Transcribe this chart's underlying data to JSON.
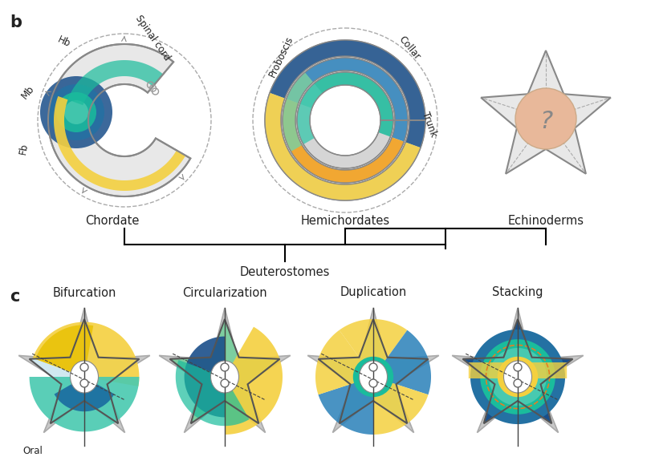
{
  "panel_b_label": "b",
  "panel_c_label": "c",
  "background_color": "#ffffff",
  "chordate_label": "Chordate",
  "hemichordates_label": "Hemichordates",
  "echinoderms_label": "Echinoderms",
  "deuterostomes_label": "Deuterostomes",
  "chordate_sublabels": [
    "Mb",
    "Hb",
    "Spinal cord",
    "Fb"
  ],
  "hemichordate_sublabels": [
    "Proboscis",
    "Collar",
    "Trunk"
  ],
  "echinoderm_question": "?",
  "hypothesis_labels": [
    "Bifurcation",
    "Circularization",
    "Duplication",
    "Stacking"
  ],
  "oral_label": "Oral",
  "colors": {
    "dark_blue": "#1a4f8a",
    "mid_blue": "#2980b9",
    "teal": "#1abc9c",
    "light_teal": "#48c9b0",
    "green": "#7dcea0",
    "yellow": "#f4d03f",
    "orange_yellow": "#f39c12",
    "gray_outline": "#b0b0b0",
    "light_gray": "#d5d5d5",
    "dark_gray": "#888888",
    "white": "#ffffff",
    "peach": "#e8b89a",
    "light_blue": "#85c1e9",
    "pale_teal": "#a2d9ce",
    "very_light_gray": "#e8e8e8",
    "text_color": "#222222"
  },
  "font_size_labels": 10,
  "font_size_panel": 13,
  "font_size_sublabels": 8.5,
  "font_size_title": 10.5
}
